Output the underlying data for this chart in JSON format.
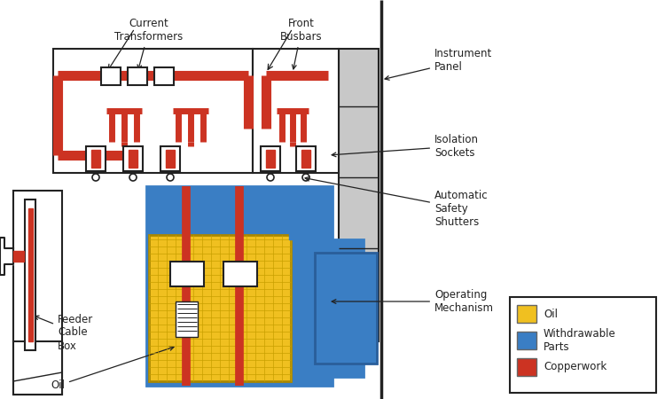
{
  "bg": "#ffffff",
  "colors": {
    "copper": "#cc3322",
    "oil": "#f0c020",
    "blue": "#3a7ec4",
    "white": "#ffffff",
    "black": "#222222",
    "lgray": "#c8c8c8",
    "panel": "#e8e8e8"
  },
  "legend": [
    {
      "color": "#f0c020",
      "label": "Oil"
    },
    {
      "color": "#3a7ec4",
      "label": "Withdrawable\nParts"
    },
    {
      "color": "#cc3322",
      "label": "Copperwork"
    }
  ]
}
